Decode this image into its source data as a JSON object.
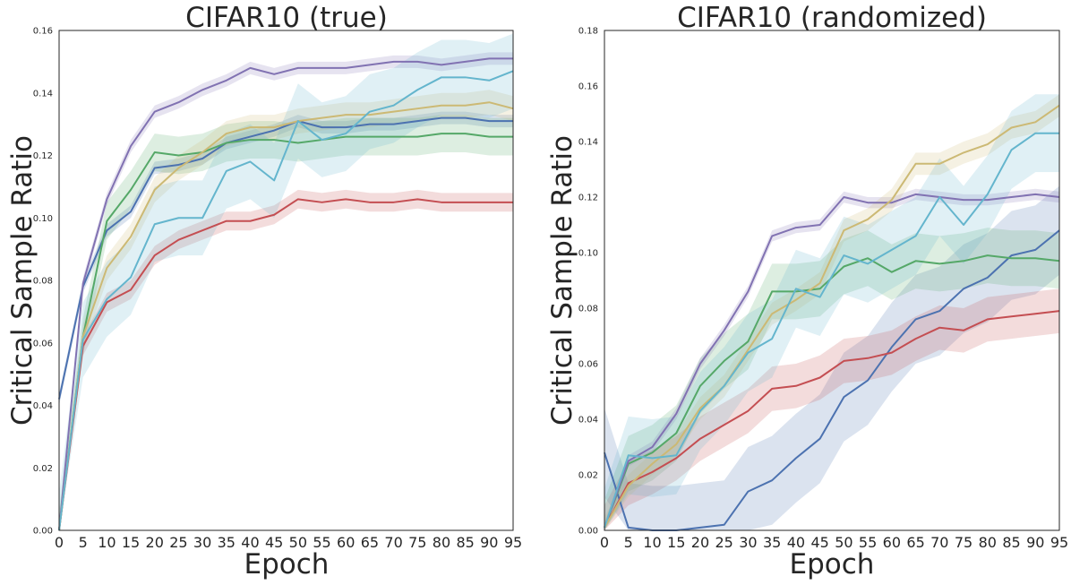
{
  "chart_data": [
    {
      "type": "line",
      "title": "CIFAR10 (true)",
      "xlabel": "Epoch",
      "ylabel": "Critical Sample Ratio",
      "xlim": [
        0,
        95
      ],
      "ylim": [
        0,
        0.16
      ],
      "x_ticks": [
        0,
        5,
        10,
        15,
        20,
        25,
        30,
        35,
        40,
        45,
        50,
        55,
        60,
        65,
        70,
        75,
        80,
        85,
        90,
        95
      ],
      "y_ticks": [
        0.0,
        0.02,
        0.04,
        0.06,
        0.08,
        0.1,
        0.12,
        0.14,
        0.16
      ],
      "y_tick_labels": [
        "0.00",
        "0.02",
        "0.04",
        "0.06",
        "0.08",
        "0.10",
        "0.12",
        "0.14",
        "0.16"
      ],
      "grid": false,
      "legend": "none",
      "x": [
        0,
        5,
        10,
        15,
        20,
        25,
        30,
        35,
        40,
        45,
        50,
        55,
        60,
        65,
        70,
        75,
        80,
        85,
        90,
        95
      ],
      "series": [
        {
          "color": "#4c72b0",
          "band": 0.002,
          "values": [
            0.042,
            0.078,
            0.096,
            0.102,
            0.116,
            0.117,
            0.119,
            0.124,
            0.126,
            0.128,
            0.131,
            0.129,
            0.129,
            0.13,
            0.13,
            0.131,
            0.132,
            0.132,
            0.131,
            0.131
          ]
        },
        {
          "color": "#55a868",
          "band": 0.006,
          "values": [
            0.0,
            0.062,
            0.099,
            0.109,
            0.121,
            0.12,
            0.121,
            0.124,
            0.125,
            0.125,
            0.124,
            0.125,
            0.126,
            0.126,
            0.126,
            0.126,
            0.127,
            0.127,
            0.126,
            0.126
          ]
        },
        {
          "color": "#c44e52",
          "band": 0.003,
          "values": [
            0.0,
            0.059,
            0.073,
            0.077,
            0.088,
            0.093,
            0.096,
            0.099,
            0.099,
            0.101,
            0.106,
            0.105,
            0.106,
            0.105,
            0.105,
            0.106,
            0.105,
            0.105,
            0.105,
            0.105
          ]
        },
        {
          "color": "#8172b2",
          "band": 0.002,
          "values": [
            0.0,
            0.079,
            0.106,
            0.123,
            0.134,
            0.137,
            0.141,
            0.144,
            0.148,
            0.146,
            0.148,
            0.148,
            0.148,
            0.149,
            0.15,
            0.15,
            0.149,
            0.15,
            0.151,
            0.151
          ]
        },
        {
          "color": "#ccb974",
          "band": 0.004,
          "values": [
            0.0,
            0.062,
            0.084,
            0.094,
            0.109,
            0.116,
            0.121,
            0.127,
            0.129,
            0.129,
            0.131,
            0.132,
            0.133,
            0.133,
            0.134,
            0.135,
            0.136,
            0.136,
            0.137,
            0.135
          ]
        },
        {
          "color": "#64b5cd",
          "band": 0.012,
          "values": [
            0.0,
            0.061,
            0.074,
            0.081,
            0.098,
            0.1,
            0.1,
            0.115,
            0.118,
            0.112,
            0.131,
            0.125,
            0.127,
            0.134,
            0.136,
            0.141,
            0.145,
            0.145,
            0.144,
            0.147
          ]
        }
      ]
    },
    {
      "type": "line",
      "title": "CIFAR10 (randomized)",
      "xlabel": "Epoch",
      "ylabel": "Critical Sample Ratio",
      "xlim": [
        0,
        95
      ],
      "ylim": [
        0,
        0.18
      ],
      "x_ticks": [
        0,
        5,
        10,
        15,
        20,
        25,
        30,
        35,
        40,
        45,
        50,
        55,
        60,
        65,
        70,
        75,
        80,
        85,
        90,
        95
      ],
      "y_ticks": [
        0.0,
        0.02,
        0.04,
        0.06,
        0.08,
        0.1,
        0.12,
        0.14,
        0.16,
        0.18
      ],
      "y_tick_labels": [
        "0.00",
        "0.02",
        "0.04",
        "0.06",
        "0.08",
        "0.10",
        "0.12",
        "0.14",
        "0.16",
        "0.18"
      ],
      "grid": false,
      "legend": "none",
      "x": [
        0,
        5,
        10,
        15,
        20,
        25,
        30,
        35,
        40,
        45,
        50,
        55,
        60,
        65,
        70,
        75,
        80,
        85,
        90,
        95
      ],
      "series": [
        {
          "color": "#4c72b0",
          "band": 0.016,
          "values": [
            0.028,
            0.001,
            0.0,
            0.0,
            0.001,
            0.002,
            0.014,
            0.018,
            0.026,
            0.033,
            0.048,
            0.054,
            0.066,
            0.076,
            0.079,
            0.087,
            0.091,
            0.099,
            0.101,
            0.108
          ]
        },
        {
          "color": "#55a868",
          "band": 0.01,
          "values": [
            0.001,
            0.024,
            0.028,
            0.035,
            0.052,
            0.061,
            0.068,
            0.086,
            0.086,
            0.087,
            0.095,
            0.098,
            0.093,
            0.097,
            0.096,
            0.097,
            0.099,
            0.098,
            0.098,
            0.097
          ]
        },
        {
          "color": "#c44e52",
          "band": 0.008,
          "values": [
            0.001,
            0.017,
            0.021,
            0.026,
            0.033,
            0.038,
            0.043,
            0.051,
            0.052,
            0.055,
            0.061,
            0.062,
            0.064,
            0.069,
            0.073,
            0.072,
            0.076,
            0.077,
            0.078,
            0.079
          ]
        },
        {
          "color": "#8172b2",
          "band": 0.002,
          "values": [
            0.001,
            0.025,
            0.03,
            0.042,
            0.06,
            0.072,
            0.086,
            0.106,
            0.109,
            0.11,
            0.12,
            0.118,
            0.118,
            0.121,
            0.12,
            0.119,
            0.119,
            0.12,
            0.121,
            0.12
          ]
        },
        {
          "color": "#ccb974",
          "band": 0.004,
          "values": [
            0.001,
            0.016,
            0.024,
            0.031,
            0.044,
            0.052,
            0.065,
            0.078,
            0.083,
            0.089,
            0.108,
            0.112,
            0.119,
            0.132,
            0.132,
            0.136,
            0.139,
            0.145,
            0.147,
            0.153
          ]
        },
        {
          "color": "#64b5cd",
          "band": 0.014,
          "values": [
            0.001,
            0.027,
            0.026,
            0.027,
            0.043,
            0.052,
            0.064,
            0.069,
            0.087,
            0.084,
            0.099,
            0.096,
            0.101,
            0.106,
            0.12,
            0.11,
            0.121,
            0.137,
            0.143,
            0.143
          ]
        }
      ]
    }
  ]
}
